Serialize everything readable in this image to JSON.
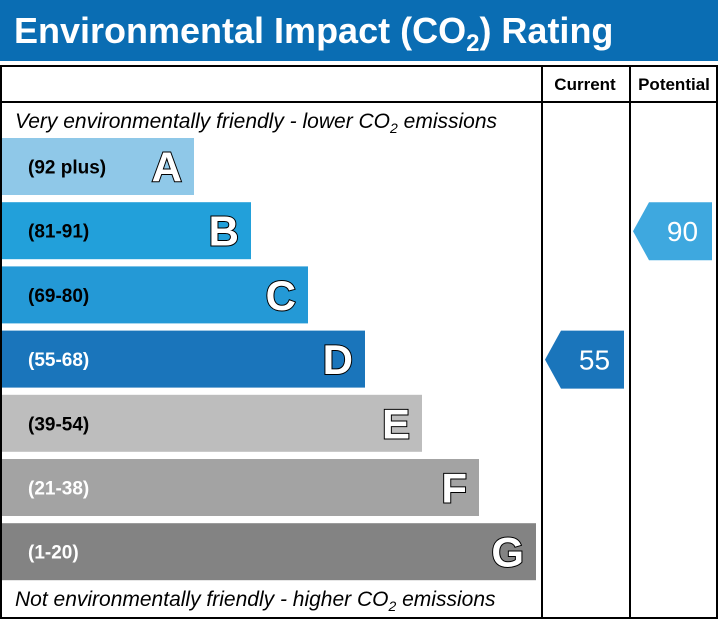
{
  "title": {
    "text": "Environmental Impact (CO",
    "sub": "2",
    "after": ") Rating"
  },
  "columns": {
    "current": "Current",
    "potential": "Potential"
  },
  "notes": {
    "top": {
      "text": "Very environmentally friendly - lower CO",
      "sub": "2",
      "after": " emissions"
    },
    "bottom": {
      "text": "Not environmentally friendly - higher CO",
      "sub": "2",
      "after": " emissions"
    }
  },
  "colors": {
    "title_bg": "#0a6db3",
    "frame": "#000000"
  },
  "chart_data": {
    "type": "bar",
    "bands": [
      {
        "letter": "A",
        "range": "(92 plus)",
        "color": "#8fc8e8",
        "range_color": "#000000"
      },
      {
        "letter": "B",
        "range": "(81-91)",
        "color": "#22a0da",
        "range_color": "#000000"
      },
      {
        "letter": "C",
        "range": "(69-80)",
        "color": "#2499d6",
        "range_color": "#000000"
      },
      {
        "letter": "D",
        "range": "(55-68)",
        "color": "#1a75bb",
        "range_color": "#ffffff"
      },
      {
        "letter": "E",
        "range": "(39-54)",
        "color": "#bdbdbd",
        "range_color": "#000000"
      },
      {
        "letter": "F",
        "range": "(21-38)",
        "color": "#a3a3a3",
        "range_color": "#ffffff"
      },
      {
        "letter": "G",
        "range": "(1-20)",
        "color": "#838383",
        "range_color": "#ffffff"
      }
    ],
    "current": {
      "value": 55,
      "band": "D",
      "color": "#1a75bb"
    },
    "potential": {
      "value": 90,
      "band": "B",
      "color": "#3ea8df"
    }
  }
}
